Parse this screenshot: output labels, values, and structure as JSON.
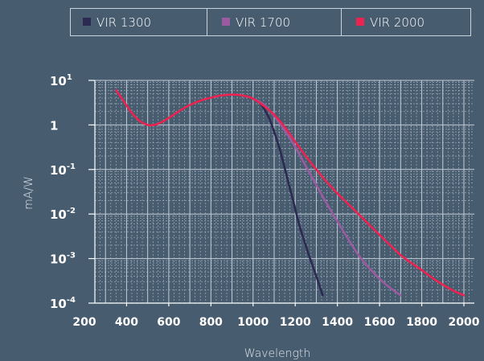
{
  "chart_data": {
    "type": "line",
    "xlabel": "Wavelength",
    "ylabel": "mA/W",
    "xlim": [
      200,
      2050
    ],
    "ylim": [
      0.0001,
      10
    ],
    "yscale": "log",
    "grid": true,
    "legend_position": "top",
    "x_ticks": [
      200,
      400,
      600,
      800,
      1000,
      1200,
      1400,
      1600,
      1800,
      2000
    ],
    "x_tick_labels": [
      "200",
      "400",
      "600",
      "800",
      "1000",
      "1200",
      "1400",
      "1600",
      "1800",
      "2000"
    ],
    "y_ticks": [
      {
        "value": 10,
        "base": "10",
        "exp": "1"
      },
      {
        "value": 1,
        "base": "1",
        "exp": ""
      },
      {
        "value": 0.1,
        "base": "10",
        "exp": "-1"
      },
      {
        "value": 0.01,
        "base": "10",
        "exp": "-2"
      },
      {
        "value": 0.001,
        "base": "10",
        "exp": "-3"
      },
      {
        "value": 0.0001,
        "base": "10",
        "exp": "-4"
      }
    ],
    "series": [
      {
        "name": "VIR 1300",
        "color": "#2d2a52",
        "x": [
          1000,
          1020,
          1040,
          1060,
          1080,
          1100,
          1130,
          1160,
          1190,
          1220,
          1260,
          1300,
          1330
        ],
        "y": [
          3.9,
          3.5,
          2.8,
          2.0,
          1.3,
          0.7,
          0.25,
          0.07,
          0.02,
          0.0055,
          0.0014,
          0.0004,
          0.00015
        ]
      },
      {
        "name": "VIR 1700",
        "color": "#9b5ba1",
        "x": [
          1000,
          1050,
          1100,
          1150,
          1200,
          1250,
          1300,
          1350,
          1400,
          1450,
          1500,
          1550,
          1600,
          1650,
          1700
        ],
        "y": [
          3.9,
          2.9,
          1.6,
          0.75,
          0.32,
          0.12,
          0.045,
          0.017,
          0.0068,
          0.0028,
          0.0012,
          0.00062,
          0.00035,
          0.00022,
          0.00015
        ]
      },
      {
        "name": "VIR 2000",
        "color": "#ec2250",
        "x": [
          350,
          380,
          420,
          460,
          500,
          540,
          580,
          620,
          660,
          700,
          750,
          800,
          850,
          900,
          950,
          1000,
          1050,
          1100,
          1150,
          1200,
          1250,
          1300,
          1350,
          1400,
          1450,
          1500,
          1550,
          1600,
          1650,
          1700,
          1750,
          1800,
          1850,
          1900,
          1950,
          2000
        ],
        "y": [
          6.0,
          3.8,
          2.0,
          1.25,
          1.0,
          1.02,
          1.25,
          1.65,
          2.2,
          2.8,
          3.5,
          4.1,
          4.6,
          4.8,
          4.6,
          3.9,
          2.7,
          1.7,
          0.9,
          0.42,
          0.2,
          0.1,
          0.052,
          0.029,
          0.017,
          0.01,
          0.0058,
          0.0034,
          0.002,
          0.0012,
          0.0008,
          0.00055,
          0.00037,
          0.00026,
          0.00019,
          0.00015
        ]
      }
    ]
  }
}
